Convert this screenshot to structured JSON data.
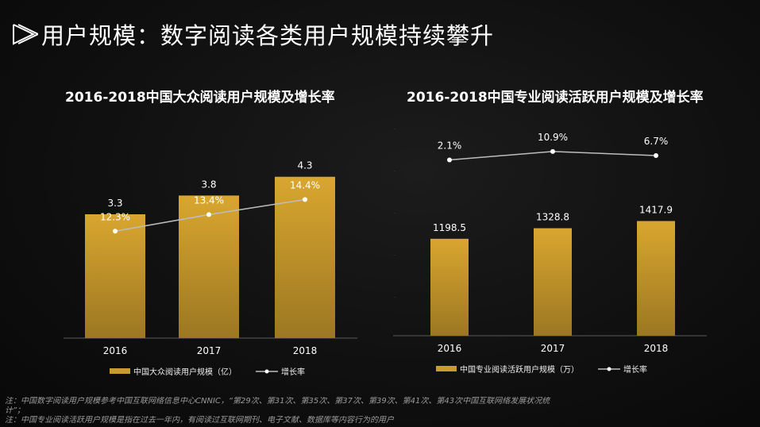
{
  "page": {
    "title": "用户规模：数字阅读各类用户规模持续攀升"
  },
  "chart_data": [
    {
      "type": "bar",
      "title": "2016-2018中国大众阅读用户规模及增长率",
      "categories": [
        "2016",
        "2017",
        "2018"
      ],
      "series": [
        {
          "name": "中国大众阅读用户规模（亿）",
          "kind": "bar",
          "values": [
            3.3,
            3.8,
            4.3
          ],
          "labels": [
            "3.3",
            "3.8",
            "4.3"
          ]
        },
        {
          "name": "增长率",
          "kind": "line",
          "values": [
            12.3,
            13.4,
            14.4
          ],
          "labels": [
            "12.3%",
            "13.4%",
            "14.4%"
          ]
        }
      ]
    },
    {
      "type": "bar",
      "title": "2016-2018中国专业阅读活跃用户规模及增长率",
      "categories": [
        "2016",
        "2017",
        "2018"
      ],
      "series": [
        {
          "name": "中国专业阅读活跃用户规模（万）",
          "kind": "bar",
          "values": [
            1198.5,
            1328.8,
            1417.9
          ],
          "labels": [
            "1198.5",
            "1328.8",
            "1417.9"
          ]
        },
        {
          "name": "增长率",
          "kind": "line",
          "values": [
            2.1,
            10.9,
            6.7
          ],
          "labels": [
            "2.1%",
            "10.9%",
            "6.7%"
          ]
        }
      ]
    }
  ],
  "notes": [
    "注：中国数字阅读用户规模参考中国互联网络信息中心CNNIC，“第29次、第31次、第35次、第37次、第39次、第41次、第43次中国互联网络发展状况统",
    "计”；",
    "注：中国专业阅读活跃用户规模是指在过去一年内，有阅读过互联网期刊、电子文献、数据库等内容行为的用户"
  ],
  "colors": {
    "bar_top": "#d9a62f",
    "bar_bottom": "#9c7722",
    "line": "#bdbdbd",
    "marker": "#ffffff",
    "background": "#111111"
  }
}
